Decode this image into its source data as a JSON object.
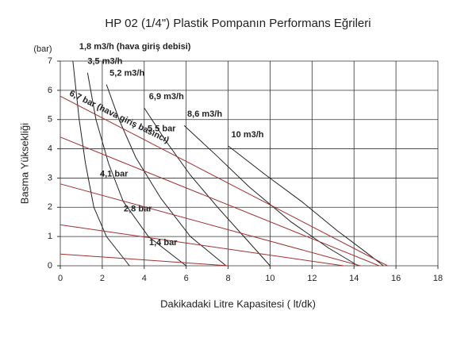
{
  "chart_data": {
    "type": "line",
    "title": "HP 02 (1/4\") Plastik Pompanın Performans Eğrileri",
    "xlabel": "Dakikadaki Litre Kapasitesi ( lt/dk)",
    "ylabel": "Basma Yüksekliği",
    "yunit": "(bar)",
    "xlim": [
      0,
      18
    ],
    "xticks": [
      0,
      2,
      4,
      6,
      8,
      10,
      12,
      14,
      16,
      18
    ],
    "ylim": [
      0,
      7
    ],
    "yticks": [
      0,
      1,
      2,
      3,
      4,
      5,
      6,
      7
    ],
    "grid": true,
    "series": [
      {
        "name": "1,8 m3/h (hava giriş debisi)",
        "color": "#222222",
        "x": [
          0.6,
          0.9,
          1.2,
          1.6,
          2.2,
          3.3
        ],
        "values": [
          7,
          5,
          3.5,
          2,
          1,
          0
        ]
      },
      {
        "name": "3,5 m3/h",
        "color": "#222222",
        "x": [
          1.3,
          1.7,
          2.3,
          3,
          4.2,
          6
        ],
        "values": [
          6.6,
          5,
          3.5,
          2.2,
          1,
          0
        ]
      },
      {
        "name": "5,2 m3/h",
        "color": "#222222",
        "x": [
          2.2,
          2.8,
          3.6,
          4.8,
          6.2,
          7.9
        ],
        "values": [
          6.2,
          5,
          3.7,
          2.3,
          1,
          0
        ]
      },
      {
        "name": "6,9 m3/h",
        "color": "#222222",
        "x": [
          4,
          5,
          6.2,
          7.5,
          9,
          10
        ],
        "values": [
          5.4,
          4.3,
          3.1,
          2,
          0.8,
          0
        ]
      },
      {
        "name": "8,6 m3/h",
        "color": "#222222",
        "x": [
          5.9,
          7.4,
          9,
          11,
          12.8,
          14.2
        ],
        "values": [
          4.8,
          3.8,
          2.7,
          1.5,
          0.6,
          0
        ]
      },
      {
        "name": "10 m3/h",
        "color": "#222222",
        "x": [
          8,
          9.8,
          11.5,
          13.2,
          14.5,
          15.4
        ],
        "values": [
          4.1,
          3.1,
          2.2,
          1.2,
          0.5,
          0
        ]
      },
      {
        "name": "6,7 bar (hava giriş basıncı)",
        "color": "#a03030",
        "x": [
          0,
          15.6
        ],
        "values": [
          5.8,
          0
        ]
      },
      {
        "name": "5,5 bar",
        "color": "#a03030",
        "x": [
          0,
          15.2
        ],
        "values": [
          4.4,
          0
        ]
      },
      {
        "name": "4,1 bar",
        "color": "#a03030",
        "x": [
          0,
          14.3
        ],
        "values": [
          2.8,
          0
        ]
      },
      {
        "name": "2,8 bar",
        "color": "#a03030",
        "x": [
          0,
          13.5
        ],
        "values": [
          1.4,
          0
        ]
      },
      {
        "name": "1,4 bar",
        "color": "#a03030",
        "x": [
          0,
          8
        ],
        "values": [
          0.4,
          0
        ]
      }
    ]
  }
}
